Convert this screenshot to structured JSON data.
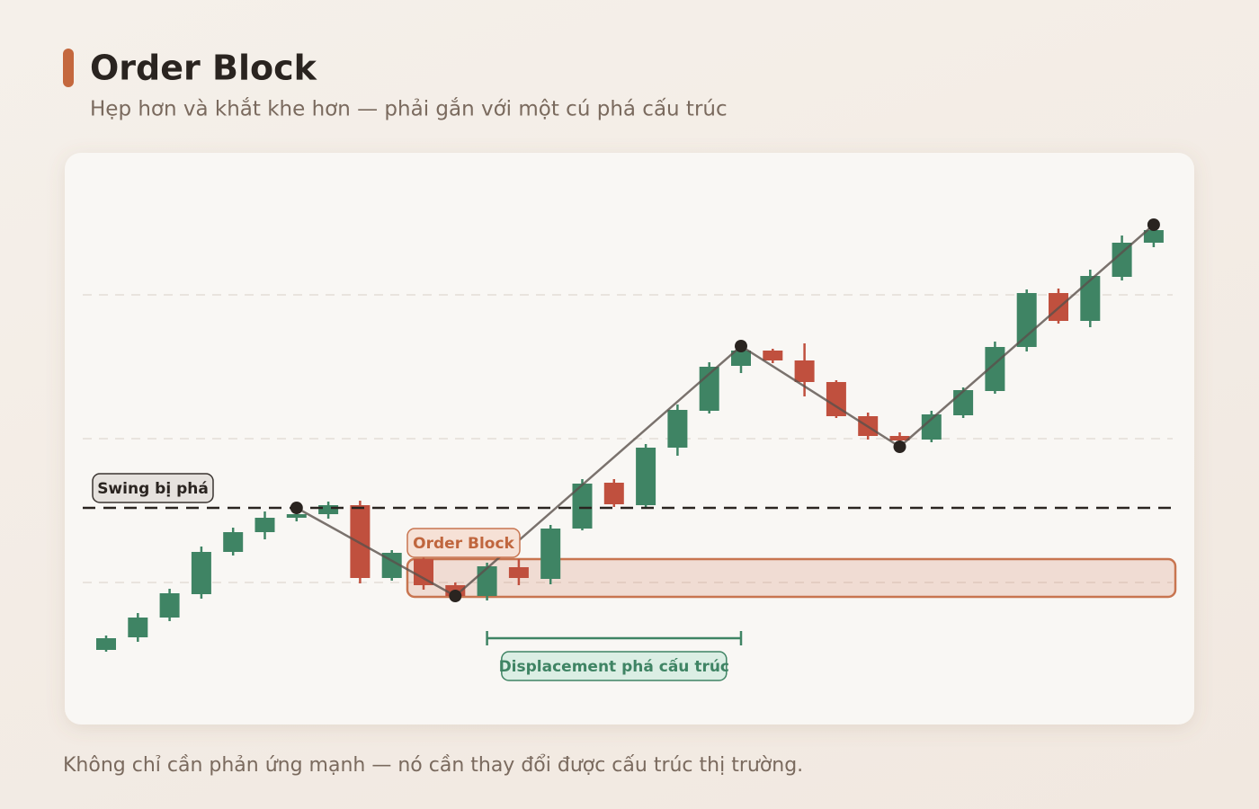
{
  "header": {
    "title": "Order Block",
    "subtitle": "Hẹp hơn và khắt khe hơn — phải gắn với một cú phá cấu trúc"
  },
  "chart_data": {
    "type": "candlestick",
    "ylim": [
      0,
      60
    ],
    "grid_lines": [
      16,
      32,
      48
    ],
    "colors": {
      "up": "#3f8464",
      "down": "#c0503e"
    },
    "open": [
      8.5,
      9.9,
      12.1,
      14.7,
      19.4,
      21.6,
      23.2,
      23.6,
      24.6,
      16.5,
      18.6,
      15.7,
      14.5,
      17.7,
      16.4,
      22.0,
      27.1,
      24.6,
      31.0,
      35.1,
      40.1,
      41.8,
      40.7,
      38.3,
      34.5,
      32.3,
      31.9,
      34.6,
      37.3,
      42.2,
      48.2,
      45.1,
      50.0,
      53.8
    ],
    "high": [
      10.1,
      12.6,
      15.3,
      20.0,
      22.1,
      23.9,
      24.3,
      25.0,
      25.1,
      19.6,
      19.0,
      16.0,
      18.2,
      18.6,
      22.4,
      27.5,
      27.5,
      31.4,
      35.8,
      40.5,
      42.4,
      42.0,
      42.6,
      38.5,
      34.9,
      32.7,
      35.1,
      37.7,
      42.8,
      48.6,
      48.7,
      50.8,
      54.6,
      55.8
    ],
    "low": [
      8.3,
      9.4,
      11.7,
      14.2,
      19.0,
      20.8,
      22.8,
      23.1,
      15.9,
      16.2,
      15.2,
      14.1,
      14.0,
      15.7,
      15.8,
      21.8,
      24.4,
      24.3,
      30.1,
      34.8,
      39.3,
      40.4,
      36.7,
      34.3,
      31.9,
      31.2,
      31.6,
      34.3,
      37.0,
      41.7,
      44.8,
      44.4,
      49.6,
      53.3
    ],
    "close": [
      9.8,
      12.1,
      14.8,
      19.4,
      21.6,
      23.2,
      23.6,
      24.6,
      16.5,
      19.3,
      15.7,
      14.5,
      17.8,
      16.5,
      22.0,
      27.0,
      24.7,
      31.0,
      35.2,
      40.0,
      41.8,
      40.7,
      38.3,
      34.5,
      32.3,
      31.8,
      34.7,
      37.4,
      42.2,
      48.2,
      45.1,
      50.1,
      53.8,
      55.2
    ],
    "swing_points": {
      "index": [
        6,
        11,
        20,
        25,
        33
      ],
      "price": [
        24.3,
        14.5,
        42.3,
        31.1,
        55.8
      ]
    },
    "broken_swing": {
      "label": "Swing bị phá",
      "price": 24.3
    },
    "order_block": {
      "label": "Order Block",
      "start_index": 10,
      "top": 18.6,
      "bottom": 14.4
    },
    "displacement": {
      "label": "Displacement phá cấu trúc",
      "start_index": 12,
      "end_index": 20
    }
  },
  "footer": "Không chỉ cần phản ứng mạnh — nó cần thay đổi được cấu trúc thị trường."
}
